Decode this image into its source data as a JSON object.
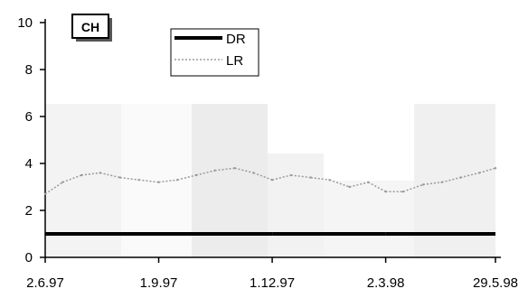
{
  "chart_data": {
    "type": "line",
    "title": "CH",
    "xlabel": "",
    "ylabel": "",
    "ylim": [
      0,
      10
    ],
    "yticks": [
      0,
      2,
      4,
      6,
      8,
      10
    ],
    "xlim": [
      "2.6.97",
      "29.5.98"
    ],
    "xticks": [
      "2.6.97",
      "1.9.97",
      "1.12.97",
      "2.3.98",
      "29.5.98"
    ],
    "grid": false,
    "legend_position": "top-center",
    "series": [
      {
        "name": "DR",
        "style": "solid-thick",
        "color": "#000000",
        "x": [
          "2.6.97",
          "1.9.97",
          "1.12.97",
          "2.3.98",
          "29.5.98"
        ],
        "values": [
          1.0,
          1.0,
          1.0,
          1.0,
          1.0
        ]
      },
      {
        "name": "LR",
        "style": "dotted-light",
        "color": "#9a9a9a",
        "x": [
          "2.6.97",
          "16.6.97",
          "1.7.97",
          "16.7.97",
          "1.8.97",
          "16.8.97",
          "1.9.97",
          "16.9.97",
          "1.10.97",
          "16.10.97",
          "1.11.97",
          "16.11.97",
          "1.12.97",
          "16.12.97",
          "1.1.98",
          "16.1.98",
          "1.2.98",
          "16.2.98",
          "2.3.98",
          "16.3.98",
          "1.4.98",
          "16.4.98",
          "1.5.98",
          "16.5.98",
          "29.5.98"
        ],
        "values": [
          2.7,
          3.2,
          3.5,
          3.6,
          3.4,
          3.3,
          3.2,
          3.3,
          3.5,
          3.7,
          3.8,
          3.6,
          3.3,
          3.5,
          3.4,
          3.3,
          3.0,
          3.2,
          2.8,
          2.8,
          3.1,
          3.2,
          3.4,
          3.6,
          3.8
        ]
      }
    ]
  }
}
